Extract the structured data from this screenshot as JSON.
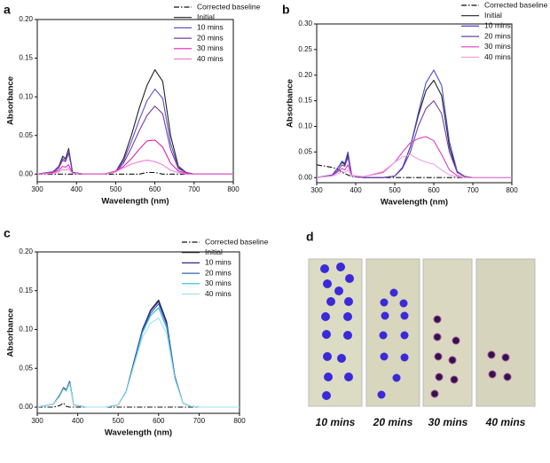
{
  "chart_data": [
    {
      "type": "line",
      "panel_label": "a",
      "x_label": "Wavelength (nm)",
      "y_label": "Absorbance",
      "x": [
        300,
        340,
        355,
        365,
        372,
        380,
        390,
        420,
        470,
        500,
        520,
        540,
        560,
        580,
        600,
        620,
        640,
        660,
        680,
        700,
        750,
        800
      ],
      "series": [
        {
          "name": "Corrected baseline",
          "color": "#111111",
          "dash": "dashdot",
          "values": [
            0,
            0,
            0,
            0,
            0,
            0,
            0,
            0,
            0,
            0,
            0,
            0,
            0,
            0.002,
            0.002,
            0,
            0,
            0,
            0,
            0,
            0,
            0
          ]
        },
        {
          "name": "Initial",
          "color": "#222222",
          "values": [
            0,
            0.003,
            0.01,
            0.023,
            0.02,
            0.033,
            0.002,
            0,
            0,
            0.003,
            0.02,
            0.05,
            0.085,
            0.115,
            0.135,
            0.12,
            0.05,
            0.01,
            0.002,
            0,
            0,
            0
          ]
        },
        {
          "name": "10 mins",
          "color": "#5a55c8",
          "values": [
            0,
            0.003,
            0.009,
            0.02,
            0.018,
            0.03,
            0.002,
            0,
            0,
            0.003,
            0.017,
            0.042,
            0.07,
            0.095,
            0.11,
            0.098,
            0.04,
            0.008,
            0.002,
            0,
            0,
            0
          ]
        },
        {
          "name": "20 mins",
          "color": "#7a3aa8",
          "values": [
            0,
            0.002,
            0.008,
            0.018,
            0.016,
            0.027,
            0.002,
            0,
            0,
            0.003,
            0.014,
            0.034,
            0.056,
            0.076,
            0.088,
            0.078,
            0.032,
            0.007,
            0.002,
            0,
            0,
            0
          ]
        },
        {
          "name": "30 mins",
          "color": "#e020b8",
          "values": [
            0,
            0.002,
            0.005,
            0.01,
            0.009,
            0.012,
            0.001,
            0,
            0,
            0.004,
            0.01,
            0.02,
            0.032,
            0.043,
            0.044,
            0.035,
            0.014,
            0.004,
            0.001,
            0,
            0,
            0
          ]
        },
        {
          "name": "40 mins",
          "color": "#f080d8",
          "values": [
            0,
            0.001,
            0.003,
            0.006,
            0.005,
            0.007,
            0.001,
            0,
            0,
            0.003,
            0.008,
            0.013,
            0.016,
            0.018,
            0.016,
            0.012,
            0.005,
            0.002,
            0,
            0,
            0,
            0
          ]
        }
      ],
      "xlim": [
        300,
        800
      ],
      "ylim": [
        -0.01,
        0.2
      ],
      "xticks": [
        300,
        400,
        500,
        600,
        700,
        800
      ],
      "yticks": [
        {
          "value": 0,
          "label": "0.00"
        },
        {
          "value": 0.05,
          "label": "0.05"
        },
        {
          "value": 0.1,
          "label": "0.10"
        },
        {
          "value": 0.15,
          "label": "0.15"
        },
        {
          "value": 0.2,
          "label": "0.20"
        }
      ]
    },
    {
      "type": "line",
      "panel_label": "b",
      "x_label": "Wavelength (nm)",
      "y_label": "Absorbance",
      "x": [
        300,
        340,
        355,
        365,
        372,
        380,
        390,
        420,
        470,
        500,
        520,
        540,
        560,
        580,
        600,
        620,
        640,
        660,
        680,
        700,
        750,
        800
      ],
      "series": [
        {
          "name": "Corrected baseline",
          "color": "#111111",
          "dash": "dashdot",
          "values": [
            0.025,
            0.02,
            0.016,
            0.01,
            0.008,
            0.005,
            0.002,
            0,
            0,
            0,
            0,
            0,
            0,
            0,
            0,
            0,
            0,
            0,
            0,
            0,
            0,
            0
          ]
        },
        {
          "name": "Initial",
          "color": "#222222",
          "values": [
            0,
            0.005,
            0.02,
            0.03,
            0.025,
            0.045,
            0.003,
            0,
            0,
            0.003,
            0.02,
            0.06,
            0.12,
            0.17,
            0.19,
            0.16,
            0.06,
            0.01,
            0.002,
            0,
            0,
            0
          ]
        },
        {
          "name": "10 mins",
          "color": "#4a48d0",
          "values": [
            0,
            0.005,
            0.02,
            0.032,
            0.028,
            0.05,
            0.003,
            0,
            0,
            0.003,
            0.02,
            0.06,
            0.125,
            0.185,
            0.21,
            0.18,
            0.07,
            0.012,
            0.002,
            0,
            0,
            0
          ]
        },
        {
          "name": "20 mins",
          "color": "#7040a8",
          "values": [
            0,
            0.004,
            0.015,
            0.025,
            0.022,
            0.04,
            0.003,
            0,
            0,
            0.003,
            0.018,
            0.05,
            0.1,
            0.135,
            0.15,
            0.125,
            0.05,
            0.01,
            0.002,
            0,
            0,
            0
          ]
        },
        {
          "name": "30 mins",
          "color": "#d840c0",
          "values": [
            0,
            0.004,
            0.012,
            0.018,
            0.015,
            0.025,
            0.004,
            0.002,
            0.01,
            0.03,
            0.05,
            0.068,
            0.076,
            0.08,
            0.072,
            0.045,
            0.015,
            0.004,
            0,
            0,
            0,
            0
          ]
        },
        {
          "name": "40 mins",
          "color": "#f0a0e0",
          "values": [
            0,
            0.003,
            0.008,
            0.012,
            0.01,
            0.015,
            0.003,
            0.002,
            0.012,
            0.03,
            0.04,
            0.045,
            0.036,
            0.03,
            0.026,
            0.015,
            0.005,
            0.002,
            0,
            0,
            0,
            0
          ]
        }
      ],
      "xlim": [
        300,
        800
      ],
      "ylim": [
        -0.01,
        0.3
      ],
      "xticks": [
        300,
        400,
        500,
        600,
        700,
        800
      ],
      "yticks": [
        {
          "value": 0,
          "label": "0.00"
        },
        {
          "value": 0.05,
          "label": "0.05"
        },
        {
          "value": 0.1,
          "label": "0.10"
        },
        {
          "value": 0.15,
          "label": "0.15"
        },
        {
          "value": 0.2,
          "label": "0.20"
        },
        {
          "value": 0.25,
          "label": "0.25"
        },
        {
          "value": 0.3,
          "label": "0.30"
        }
      ]
    },
    {
      "type": "line",
      "panel_label": "c",
      "x_label": "Wavelength (nm)",
      "y_label": "Absorbance",
      "x": [
        300,
        340,
        355,
        365,
        372,
        380,
        390,
        420,
        470,
        500,
        520,
        540,
        560,
        580,
        600,
        620,
        640,
        660,
        680,
        700,
        750,
        800
      ],
      "series": [
        {
          "name": "Corrected baseline",
          "color": "#111111",
          "dash": "dashdot",
          "values": [
            0,
            0,
            0.002,
            0.005,
            0.001,
            0,
            0,
            0,
            0,
            0,
            0,
            0,
            0,
            0,
            0,
            0,
            0,
            0,
            0,
            0,
            0,
            0
          ]
        },
        {
          "name": "Initial",
          "color": "#222222",
          "values": [
            0,
            0.004,
            0.015,
            0.025,
            0.022,
            0.033,
            0.003,
            0,
            0,
            0.003,
            0.02,
            0.06,
            0.1,
            0.125,
            0.138,
            0.11,
            0.04,
            0.005,
            0.001,
            0,
            0,
            0
          ]
        },
        {
          "name": "10 mins",
          "color": "#2a2a8a",
          "values": [
            0,
            0.004,
            0.015,
            0.025,
            0.022,
            0.033,
            0.003,
            0,
            0,
            0.003,
            0.02,
            0.06,
            0.1,
            0.124,
            0.136,
            0.108,
            0.04,
            0.005,
            0.001,
            0,
            0,
            0
          ]
        },
        {
          "name": "20 mins",
          "color": "#3464b4",
          "values": [
            0,
            0.004,
            0.014,
            0.024,
            0.021,
            0.032,
            0.003,
            0,
            0,
            0.003,
            0.02,
            0.058,
            0.098,
            0.121,
            0.133,
            0.106,
            0.039,
            0.005,
            0.001,
            0,
            0,
            0
          ]
        },
        {
          "name": "30 mins",
          "color": "#30b4d4",
          "values": [
            0,
            0.004,
            0.014,
            0.024,
            0.021,
            0.031,
            0.003,
            0,
            0,
            0.003,
            0.02,
            0.057,
            0.096,
            0.118,
            0.128,
            0.102,
            0.038,
            0.005,
            0.001,
            0,
            0,
            0
          ]
        },
        {
          "name": "40 mins",
          "color": "#a0e0f0",
          "values": [
            0,
            0.004,
            0.013,
            0.023,
            0.02,
            0.03,
            0.003,
            0,
            0,
            0.003,
            0.019,
            0.055,
            0.09,
            0.108,
            0.115,
            0.095,
            0.036,
            0.005,
            0.001,
            0,
            0,
            0
          ]
        }
      ],
      "xlim": [
        300,
        800
      ],
      "ylim": [
        -0.008,
        0.2
      ],
      "xticks": [
        300,
        400,
        500,
        600,
        700,
        800
      ],
      "yticks": [
        {
          "value": 0,
          "label": "0.00"
        },
        {
          "value": 0.05,
          "label": "0.05"
        },
        {
          "value": 0.1,
          "label": "0.10"
        },
        {
          "value": 0.15,
          "label": "0.15"
        },
        {
          "value": 0.2,
          "label": "0.20"
        }
      ]
    }
  ],
  "photo_panel": {
    "label": "d",
    "captions": [
      "10 mins",
      "20 mins",
      "30 mins",
      "40 mins"
    ]
  }
}
